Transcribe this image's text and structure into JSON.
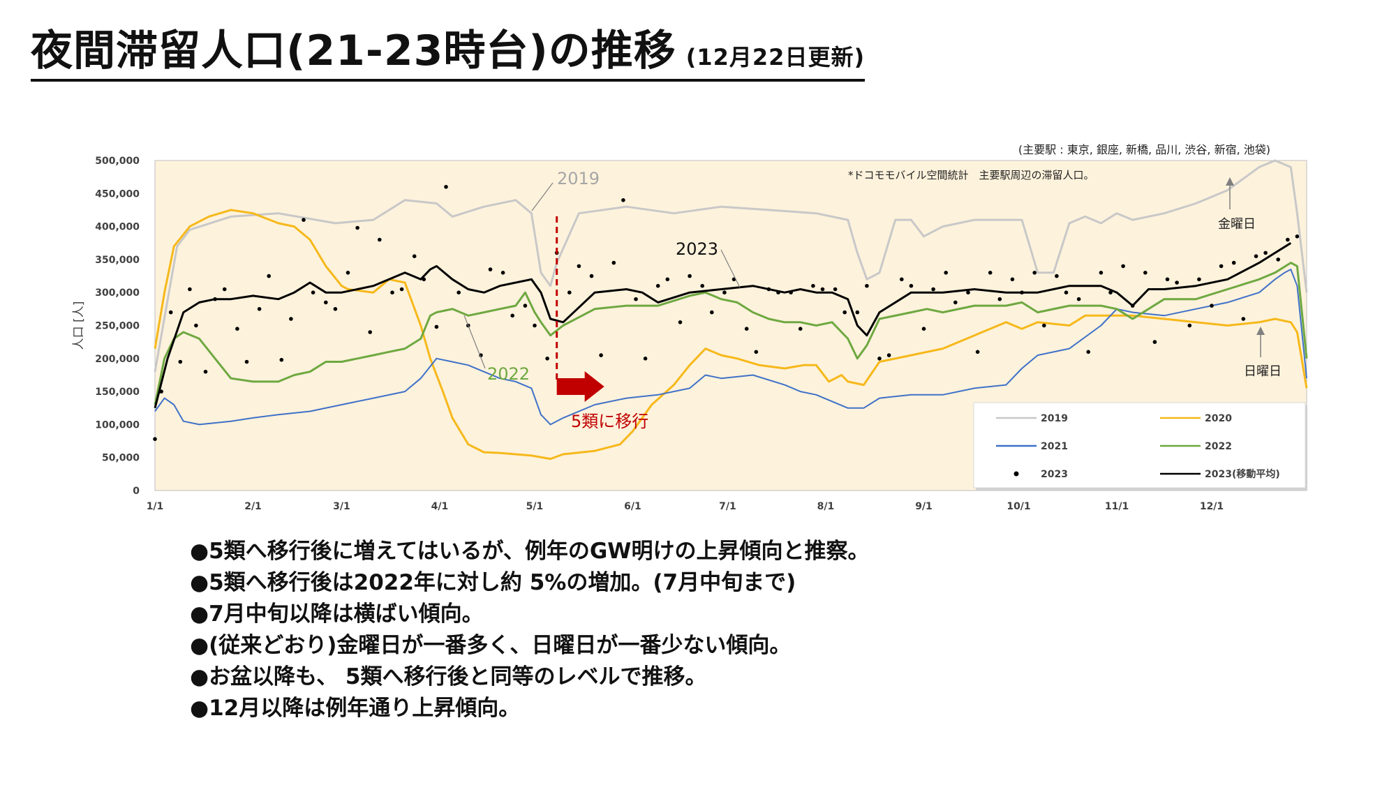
{
  "page": {
    "title": "夜間滞留人口(21-23時台)の推移",
    "title_sub": "(12月22日更新)"
  },
  "notes": {
    "stations": "(主要駅 : 東京, 銀座, 新橋, 品川, 渋谷, 新宿, 池袋)",
    "source": "*ドコモモバイル空間統計　主要駅周辺の滞留人口。",
    "label_2019": "2019",
    "label_2022": "2022",
    "label_2023": "2023",
    "friday": "金曜日",
    "sunday": "日曜日",
    "shift": "5類に移行"
  },
  "colors": {
    "bg": "#fdf2dc",
    "c2019": "#c8c8c8",
    "c2020": "#f6b81a",
    "c2021": "#3f71c8",
    "c2022": "#6ea840",
    "c2023": "#000000",
    "marker": "#c00000"
  },
  "bullets": [
    "5類へ移行後に増えてはいるが、例年のGW明けの上昇傾向と推察。",
    "5類へ移行後は2022年に対し約 5%の増加。(7月中旬まで)",
    "7月中旬以降は横ばい傾向。",
    "(従来どおり)金曜日が一番多く、日曜日が一番少ない傾向。",
    "お盆以降も、 5類へ移行後と同等のレベルで推移。",
    "12月以降は例年通り上昇傾向。"
  ],
  "chart_data": {
    "type": "line",
    "ylabel": "人口 [人]",
    "ylim": [
      0,
      500000
    ],
    "yticks": [
      0,
      50000,
      100000,
      150000,
      200000,
      250000,
      300000,
      350000,
      400000,
      450000,
      500000
    ],
    "ytick_labels": [
      "0",
      "50,000",
      "100,000",
      "150,000",
      "200,000",
      "250,000",
      "300,000",
      "350,000",
      "400,000",
      "450,000",
      "500,000"
    ],
    "xlim": [
      1,
      365
    ],
    "x_unit": "day of year",
    "xticks": [
      1,
      32,
      60,
      91,
      121,
      152,
      182,
      213,
      244,
      274,
      305,
      335
    ],
    "xtick_labels": [
      "1/1",
      "2/1",
      "3/1",
      "4/1",
      "5/1",
      "6/1",
      "7/1",
      "8/1",
      "9/1",
      "10/1",
      "11/1",
      "12/1"
    ],
    "legend_position": "bottom-right",
    "series": [
      {
        "name": "2019",
        "x": [
          1,
          8,
          12,
          25,
          40,
          58,
          70,
          80,
          90,
          95,
          105,
          115,
          120,
          123,
          126,
          128,
          135,
          150,
          165,
          180,
          195,
          210,
          220,
          223,
          226,
          230,
          235,
          240,
          244,
          250,
          260,
          275,
          280,
          285,
          290,
          295,
          300,
          305,
          310,
          320,
          330,
          340,
          350,
          355,
          360,
          362,
          365
        ],
        "y": [
          180000,
          370000,
          395000,
          415000,
          420000,
          405000,
          410000,
          440000,
          435000,
          415000,
          430000,
          440000,
          420000,
          330000,
          310000,
          345000,
          420000,
          430000,
          420000,
          430000,
          425000,
          420000,
          410000,
          360000,
          320000,
          330000,
          410000,
          410000,
          385000,
          400000,
          410000,
          410000,
          330000,
          330000,
          405000,
          415000,
          405000,
          420000,
          410000,
          420000,
          435000,
          455000,
          490000,
          500000,
          490000,
          420000,
          300000
        ]
      },
      {
        "name": "2020",
        "x": [
          1,
          4,
          7,
          12,
          18,
          25,
          32,
          40,
          45,
          50,
          55,
          60,
          62,
          70,
          75,
          80,
          85,
          88,
          92,
          95,
          100,
          105,
          110,
          115,
          120,
          126,
          130,
          140,
          148,
          152,
          158,
          165,
          170,
          175,
          180,
          185,
          192,
          200,
          206,
          210,
          214,
          218,
          220,
          225,
          230,
          240,
          250,
          260,
          270,
          275,
          280,
          290,
          295,
          300,
          310,
          320,
          330,
          340,
          350,
          355,
          360,
          362,
          365
        ],
        "y": [
          215000,
          300000,
          370000,
          400000,
          415000,
          425000,
          420000,
          405000,
          400000,
          380000,
          340000,
          310000,
          305000,
          300000,
          320000,
          315000,
          250000,
          200000,
          150000,
          110000,
          70000,
          58000,
          57000,
          55000,
          53000,
          48000,
          55000,
          60000,
          70000,
          90000,
          130000,
          160000,
          190000,
          215000,
          205000,
          200000,
          190000,
          185000,
          190000,
          190000,
          165000,
          175000,
          165000,
          160000,
          195000,
          205000,
          215000,
          235000,
          255000,
          245000,
          255000,
          250000,
          265000,
          265000,
          265000,
          260000,
          255000,
          250000,
          255000,
          260000,
          255000,
          240000,
          155000
        ]
      },
      {
        "name": "2021",
        "x": [
          1,
          4,
          7,
          10,
          15,
          25,
          32,
          40,
          50,
          60,
          70,
          80,
          85,
          90,
          95,
          100,
          110,
          115,
          120,
          123,
          126,
          130,
          140,
          150,
          160,
          170,
          175,
          180,
          190,
          200,
          205,
          210,
          220,
          225,
          230,
          240,
          250,
          260,
          270,
          275,
          280,
          290,
          300,
          305,
          310,
          320,
          330,
          340,
          350,
          355,
          358,
          360,
          362,
          365
        ],
        "y": [
          120000,
          140000,
          130000,
          105000,
          100000,
          105000,
          110000,
          115000,
          120000,
          130000,
          140000,
          150000,
          170000,
          200000,
          195000,
          190000,
          170000,
          165000,
          155000,
          115000,
          100000,
          110000,
          130000,
          140000,
          145000,
          155000,
          175000,
          170000,
          175000,
          160000,
          150000,
          145000,
          125000,
          125000,
          140000,
          145000,
          145000,
          155000,
          160000,
          185000,
          205000,
          215000,
          250000,
          275000,
          270000,
          265000,
          275000,
          285000,
          300000,
          320000,
          330000,
          335000,
          310000,
          170000
        ]
      },
      {
        "name": "2022",
        "x": [
          1,
          4,
          7,
          10,
          15,
          20,
          25,
          32,
          40,
          45,
          50,
          55,
          60,
          65,
          70,
          75,
          80,
          85,
          88,
          90,
          95,
          100,
          105,
          110,
          115,
          118,
          121,
          123,
          126,
          130,
          140,
          150,
          160,
          170,
          175,
          180,
          185,
          190,
          195,
          200,
          205,
          210,
          215,
          218,
          220,
          223,
          226,
          230,
          240,
          245,
          250,
          260,
          270,
          275,
          280,
          290,
          300,
          305,
          310,
          320,
          330,
          340,
          350,
          355,
          360,
          362,
          365
        ],
        "y": [
          130000,
          200000,
          230000,
          240000,
          230000,
          200000,
          170000,
          165000,
          165000,
          175000,
          180000,
          195000,
          195000,
          200000,
          205000,
          210000,
          215000,
          230000,
          265000,
          270000,
          275000,
          265000,
          270000,
          275000,
          280000,
          300000,
          270000,
          255000,
          235000,
          250000,
          275000,
          280000,
          280000,
          295000,
          300000,
          290000,
          285000,
          270000,
          260000,
          255000,
          255000,
          250000,
          255000,
          240000,
          230000,
          200000,
          220000,
          260000,
          270000,
          275000,
          270000,
          280000,
          280000,
          285000,
          270000,
          280000,
          280000,
          275000,
          260000,
          290000,
          290000,
          305000,
          320000,
          330000,
          345000,
          340000,
          200000
        ]
      },
      {
        "name": "2023(移動平均)",
        "x": [
          1,
          5,
          10,
          15,
          20,
          25,
          32,
          40,
          45,
          50,
          55,
          60,
          65,
          70,
          75,
          80,
          85,
          88,
          90,
          95,
          100,
          105,
          110,
          115,
          120,
          123,
          126,
          130,
          140,
          150,
          155,
          160,
          170,
          180,
          190,
          200,
          205,
          210,
          215,
          220,
          223,
          226,
          230,
          240,
          250,
          260,
          270,
          280,
          290,
          300,
          305,
          310,
          315,
          320,
          330,
          340,
          350,
          355,
          360
        ],
        "y": [
          125000,
          200000,
          270000,
          285000,
          290000,
          290000,
          295000,
          290000,
          300000,
          315000,
          300000,
          300000,
          305000,
          310000,
          320000,
          330000,
          320000,
          335000,
          340000,
          320000,
          305000,
          300000,
          310000,
          315000,
          320000,
          300000,
          260000,
          255000,
          300000,
          305000,
          300000,
          285000,
          300000,
          305000,
          310000,
          300000,
          305000,
          300000,
          300000,
          290000,
          250000,
          235000,
          270000,
          300000,
          300000,
          305000,
          300000,
          300000,
          310000,
          310000,
          300000,
          280000,
          305000,
          305000,
          310000,
          320000,
          345000,
          360000,
          375000
        ]
      },
      {
        "name": "2023",
        "x": [
          1,
          3,
          6,
          9,
          12,
          14,
          17,
          20,
          23,
          27,
          30,
          34,
          37,
          41,
          44,
          48,
          51,
          55,
          58,
          62,
          65,
          69,
          72,
          76,
          79,
          83,
          86,
          90,
          93,
          97,
          100,
          104,
          107,
          111,
          114,
          118,
          121,
          125,
          128,
          132,
          135,
          139,
          142,
          146,
          149,
          153,
          156,
          160,
          163,
          167,
          170,
          174,
          177,
          181,
          184,
          188,
          191,
          195,
          198,
          202,
          205,
          209,
          212,
          216,
          219,
          223,
          226,
          230,
          233,
          237,
          240,
          244,
          247,
          251,
          254,
          258,
          261,
          265,
          268,
          272,
          275,
          279,
          282,
          286,
          289,
          293,
          296,
          300,
          303,
          307,
          310,
          314,
          317,
          321,
          324,
          328,
          331,
          335,
          338,
          342,
          345,
          349,
          352,
          356,
          359,
          362
        ],
        "y": [
          78000,
          150000,
          270000,
          195000,
          305000,
          250000,
          180000,
          290000,
          305000,
          245000,
          195000,
          275000,
          325000,
          198000,
          260000,
          410000,
          300000,
          285000,
          275000,
          330000,
          398000,
          240000,
          380000,
          300000,
          305000,
          355000,
          320000,
          248000,
          460000,
          300000,
          250000,
          205000,
          335000,
          330000,
          265000,
          280000,
          250000,
          200000,
          360000,
          300000,
          340000,
          325000,
          205000,
          345000,
          440000,
          290000,
          200000,
          310000,
          320000,
          255000,
          325000,
          310000,
          270000,
          300000,
          320000,
          245000,
          210000,
          305000,
          300000,
          300000,
          245000,
          310000,
          305000,
          305000,
          270000,
          270000,
          310000,
          200000,
          205000,
          320000,
          310000,
          245000,
          305000,
          330000,
          285000,
          300000,
          210000,
          330000,
          290000,
          320000,
          300000,
          330000,
          250000,
          325000,
          300000,
          290000,
          210000,
          330000,
          300000,
          340000,
          280000,
          330000,
          225000,
          320000,
          315000,
          250000,
          320000,
          280000,
          340000,
          345000,
          260000,
          355000,
          360000,
          350000,
          380000,
          385000
        ]
      }
    ]
  },
  "legend": {
    "items": [
      {
        "label": "2019",
        "kind": "line",
        "color": "#c8c8c8"
      },
      {
        "label": "2020",
        "kind": "line",
        "color": "#f6b81a"
      },
      {
        "label": "2021",
        "kind": "line",
        "color": "#3f71c8"
      },
      {
        "label": "2022",
        "kind": "line",
        "color": "#6ea840"
      },
      {
        "label": "2023",
        "kind": "dot",
        "color": "#000000"
      },
      {
        "label": "2023(移動平均)",
        "kind": "line",
        "color": "#000000"
      }
    ]
  }
}
